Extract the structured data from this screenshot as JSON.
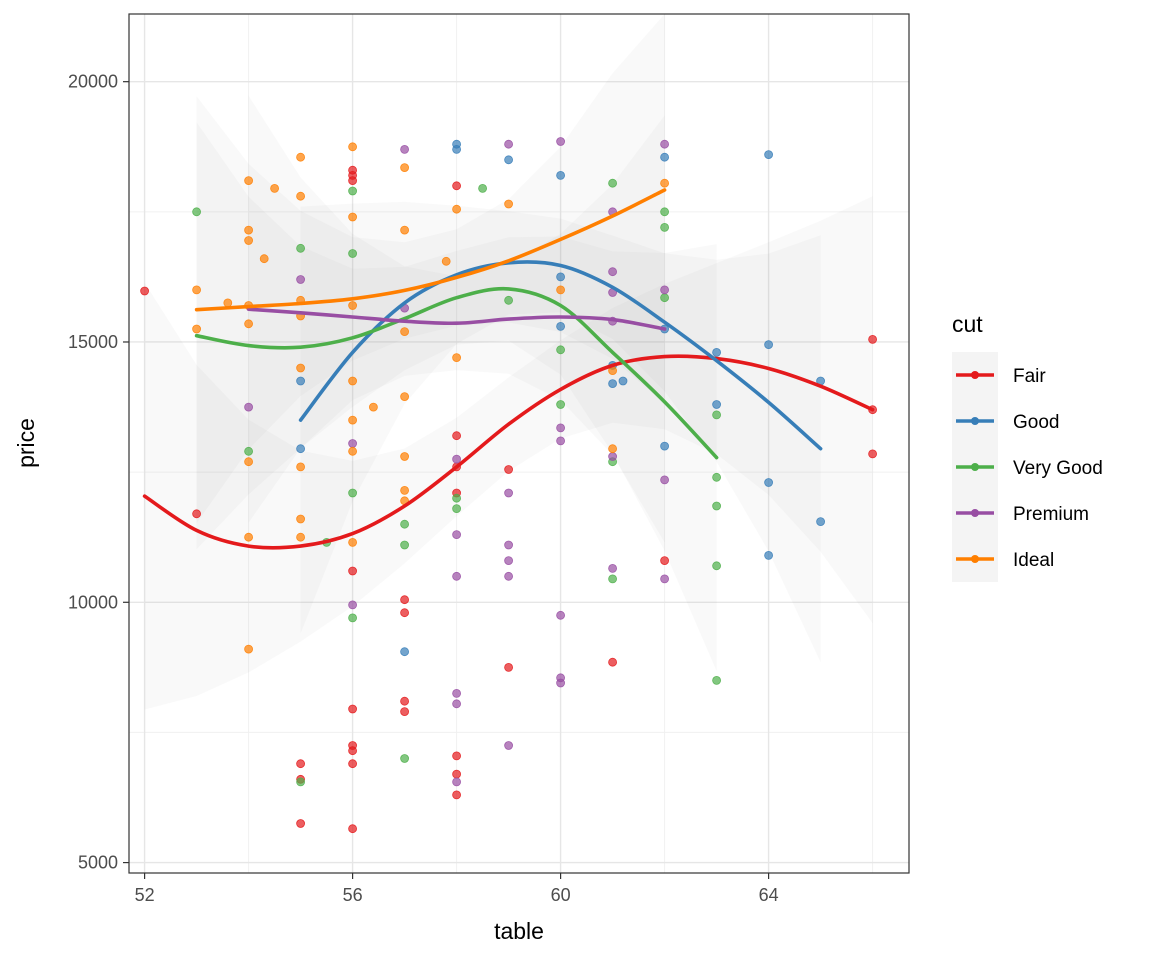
{
  "chart_data": {
    "type": "scatter",
    "xlabel": "table",
    "ylabel": "price",
    "xlim": [
      51.7,
      66.7
    ],
    "ylim": [
      4800,
      21300
    ],
    "x_ticks": [
      52,
      56,
      60,
      64
    ],
    "x_minor_ticks": [
      54,
      58,
      62,
      66
    ],
    "y_ticks": [
      5000,
      10000,
      15000,
      20000
    ],
    "y_minor_ticks": [
      7500,
      12500,
      17500
    ],
    "grid": true,
    "legend": {
      "title": "cut",
      "position": "right"
    },
    "series": [
      {
        "name": "Fair",
        "color": "#e41a1c",
        "points": [
          [
            52,
            15980
          ],
          [
            53,
            11700
          ],
          [
            55,
            6900
          ],
          [
            55,
            6600
          ],
          [
            55,
            5750
          ],
          [
            56,
            18300
          ],
          [
            56,
            18200
          ],
          [
            56,
            18100
          ],
          [
            56,
            10600
          ],
          [
            56,
            7950
          ],
          [
            56,
            7250
          ],
          [
            56,
            7150
          ],
          [
            56,
            6900
          ],
          [
            56,
            5650
          ],
          [
            57,
            10050
          ],
          [
            57,
            9800
          ],
          [
            57,
            8100
          ],
          [
            57,
            7900
          ],
          [
            58,
            18000
          ],
          [
            58,
            13200
          ],
          [
            58,
            12600
          ],
          [
            58,
            12100
          ],
          [
            58,
            7050
          ],
          [
            58,
            6700
          ],
          [
            58,
            6300
          ],
          [
            59,
            12550
          ],
          [
            59,
            8750
          ],
          [
            61,
            8850
          ],
          [
            62,
            10800
          ],
          [
            66,
            15050
          ],
          [
            66,
            13700
          ],
          [
            66,
            12850
          ]
        ],
        "smooth": [
          [
            52,
            12040
          ],
          [
            53,
            11380
          ],
          [
            54,
            11080
          ],
          [
            55,
            11080
          ],
          [
            56,
            11320
          ],
          [
            57,
            11850
          ],
          [
            58,
            12600
          ],
          [
            59,
            13420
          ],
          [
            60,
            14090
          ],
          [
            61,
            14550
          ],
          [
            62,
            14720
          ],
          [
            63,
            14680
          ],
          [
            64,
            14490
          ],
          [
            65,
            14150
          ],
          [
            66,
            13700
          ]
        ]
      },
      {
        "name": "Good",
        "color": "#377eb8",
        "points": [
          [
            55,
            14250
          ],
          [
            55,
            12950
          ],
          [
            57,
            9050
          ],
          [
            58,
            18800
          ],
          [
            58,
            18700
          ],
          [
            59,
            18500
          ],
          [
            60,
            18200
          ],
          [
            60,
            16250
          ],
          [
            60,
            15300
          ],
          [
            61,
            14550
          ],
          [
            61,
            14200
          ],
          [
            61.2,
            14250
          ],
          [
            62,
            18550
          ],
          [
            62,
            15250
          ],
          [
            62,
            13000
          ],
          [
            63,
            14800
          ],
          [
            63,
            13800
          ],
          [
            64,
            18600
          ],
          [
            64,
            14950
          ],
          [
            64,
            12300
          ],
          [
            64,
            10900
          ],
          [
            65,
            14250
          ],
          [
            65,
            11550
          ]
        ],
        "smooth": [
          [
            55,
            13500
          ],
          [
            56,
            14800
          ],
          [
            57,
            15750
          ],
          [
            58,
            16290
          ],
          [
            59,
            16520
          ],
          [
            60,
            16470
          ],
          [
            61,
            16050
          ],
          [
            62,
            15380
          ],
          [
            63,
            14640
          ],
          [
            64,
            13840
          ],
          [
            65,
            12950
          ]
        ]
      },
      {
        "name": "Very Good",
        "color": "#4daf4a",
        "points": [
          [
            53,
            17500
          ],
          [
            54,
            12900
          ],
          [
            55,
            16800
          ],
          [
            55,
            6550
          ],
          [
            55.5,
            11150
          ],
          [
            56,
            17900
          ],
          [
            56,
            16700
          ],
          [
            56,
            12100
          ],
          [
            56,
            9700
          ],
          [
            57,
            11500
          ],
          [
            57,
            11100
          ],
          [
            57,
            7000
          ],
          [
            58,
            12000
          ],
          [
            58,
            11800
          ],
          [
            58.5,
            17950
          ],
          [
            59,
            15800
          ],
          [
            60,
            14850
          ],
          [
            60,
            13800
          ],
          [
            61,
            18050
          ],
          [
            61,
            12700
          ],
          [
            61,
            10450
          ],
          [
            62,
            17500
          ],
          [
            62,
            17200
          ],
          [
            62,
            15850
          ],
          [
            63,
            13600
          ],
          [
            63,
            12400
          ],
          [
            63,
            11850
          ],
          [
            63,
            10700
          ],
          [
            63,
            8500
          ]
        ],
        "smooth": [
          [
            53,
            15120
          ],
          [
            54,
            14930
          ],
          [
            55,
            14900
          ],
          [
            56,
            15080
          ],
          [
            57,
            15450
          ],
          [
            58,
            15850
          ],
          [
            59,
            16020
          ],
          [
            60,
            15700
          ],
          [
            61,
            14800
          ],
          [
            62,
            13850
          ],
          [
            63,
            12780
          ]
        ]
      },
      {
        "name": "Premium",
        "color": "#984ea3",
        "points": [
          [
            54,
            13750
          ],
          [
            55,
            16200
          ],
          [
            56,
            13050
          ],
          [
            56,
            9950
          ],
          [
            57,
            18700
          ],
          [
            57,
            15650
          ],
          [
            58,
            12750
          ],
          [
            58,
            11300
          ],
          [
            58,
            10500
          ],
          [
            58,
            8250
          ],
          [
            58,
            8050
          ],
          [
            58,
            6550
          ],
          [
            59,
            18800
          ],
          [
            59,
            12100
          ],
          [
            59,
            11100
          ],
          [
            59,
            10800
          ],
          [
            59,
            10500
          ],
          [
            59,
            7250
          ],
          [
            60,
            18850
          ],
          [
            60,
            13350
          ],
          [
            60,
            13100
          ],
          [
            60,
            9750
          ],
          [
            60,
            8550
          ],
          [
            60,
            8450
          ],
          [
            61,
            17500
          ],
          [
            61,
            16350
          ],
          [
            61,
            15950
          ],
          [
            61,
            15400
          ],
          [
            61,
            12800
          ],
          [
            61,
            10650
          ],
          [
            62,
            18800
          ],
          [
            62,
            16000
          ],
          [
            62,
            12350
          ],
          [
            62,
            10450
          ]
        ],
        "smooth": [
          [
            54,
            15630
          ],
          [
            55,
            15560
          ],
          [
            56,
            15480
          ],
          [
            57,
            15400
          ],
          [
            58,
            15360
          ],
          [
            59,
            15440
          ],
          [
            60,
            15480
          ],
          [
            61,
            15430
          ],
          [
            62,
            15250
          ]
        ]
      },
      {
        "name": "Ideal",
        "color": "#ff7f00",
        "points": [
          [
            53,
            16000
          ],
          [
            53,
            15250
          ],
          [
            53.6,
            15750
          ],
          [
            54,
            18100
          ],
          [
            54,
            17150
          ],
          [
            54,
            16950
          ],
          [
            54,
            15700
          ],
          [
            54,
            15350
          ],
          [
            54,
            12700
          ],
          [
            54,
            11250
          ],
          [
            54,
            9100
          ],
          [
            54.3,
            16600
          ],
          [
            54.5,
            17950
          ],
          [
            55,
            18550
          ],
          [
            55,
            17800
          ],
          [
            55,
            15800
          ],
          [
            55,
            15500
          ],
          [
            55,
            14500
          ],
          [
            55,
            12600
          ],
          [
            55,
            11600
          ],
          [
            55,
            11250
          ],
          [
            56,
            18750
          ],
          [
            56,
            17400
          ],
          [
            56,
            15700
          ],
          [
            56,
            14250
          ],
          [
            56,
            13500
          ],
          [
            56,
            12900
          ],
          [
            56,
            11150
          ],
          [
            56.4,
            13750
          ],
          [
            57,
            18350
          ],
          [
            57,
            17150
          ],
          [
            57,
            15200
          ],
          [
            57,
            13950
          ],
          [
            57,
            12800
          ],
          [
            57,
            12150
          ],
          [
            57,
            11950
          ],
          [
            57.8,
            16550
          ],
          [
            58,
            17550
          ],
          [
            58,
            14700
          ],
          [
            59,
            17650
          ],
          [
            60,
            16000
          ],
          [
            61,
            14450
          ],
          [
            61,
            12950
          ],
          [
            62,
            18050
          ]
        ],
        "smooth": [
          [
            53,
            15620
          ],
          [
            54,
            15680
          ],
          [
            55,
            15740
          ],
          [
            56,
            15830
          ],
          [
            57,
            15990
          ],
          [
            58,
            16240
          ],
          [
            59,
            16560
          ],
          [
            60,
            16970
          ],
          [
            61,
            17420
          ],
          [
            62,
            17920
          ]
        ]
      }
    ]
  }
}
